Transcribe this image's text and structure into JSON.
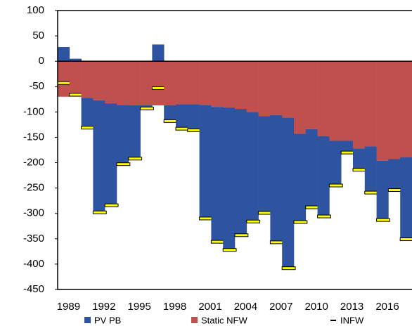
{
  "chart_data": {
    "type": "bar",
    "stacked": true,
    "categories": [
      "1989",
      null,
      null,
      "1992",
      null,
      null,
      "1995",
      null,
      null,
      "1998",
      null,
      null,
      "2001",
      null,
      null,
      "2004",
      null,
      null,
      "2007",
      null,
      null,
      "2010",
      null,
      null,
      "2013",
      null,
      null,
      "2016",
      null,
      null
    ],
    "series": [
      {
        "name": "PV PB",
        "color": "#2e54a1",
        "values": [
          28,
          5,
          -59,
          -221,
          -201,
          -117,
          -105,
          -6,
          33,
          -31,
          -48,
          -51,
          -224,
          -266,
          -281,
          -249,
          -216,
          -191,
          -251,
          -297,
          -174,
          -154,
          -158,
          -88,
          -23,
          -42,
          -91,
          -117,
          -61,
          -162
        ]
      },
      {
        "name": "Static NFW",
        "color": "#c0504d",
        "values": [
          -70,
          -70,
          -72,
          -77,
          -83,
          -86,
          -87,
          -87,
          -87,
          -87,
          -85,
          -85,
          -86,
          -90,
          -91,
          -94,
          -100,
          -108,
          -106,
          -111,
          -143,
          -134,
          -148,
          -157,
          -157,
          -172,
          -168,
          -196,
          -193,
          -189
        ]
      },
      {
        "name": "INFW",
        "type": "marker",
        "color": "#ffff00",
        "values": [
          -43,
          -66,
          -131,
          -298,
          -284,
          -203,
          -192,
          -93,
          -53,
          -118,
          -133,
          -136,
          -310,
          -356,
          -372,
          -343,
          -316,
          -299,
          -357,
          -408,
          -317,
          -288,
          -306,
          -245,
          -180,
          -214,
          -259,
          -313,
          -254,
          -351
        ]
      }
    ],
    "ylim": [
      -450,
      100
    ],
    "yticks": [
      100,
      50,
      0,
      -50,
      -100,
      -150,
      -200,
      -250,
      -300,
      -350,
      -400,
      -450
    ],
    "grid": false,
    "legend": "bottom"
  }
}
